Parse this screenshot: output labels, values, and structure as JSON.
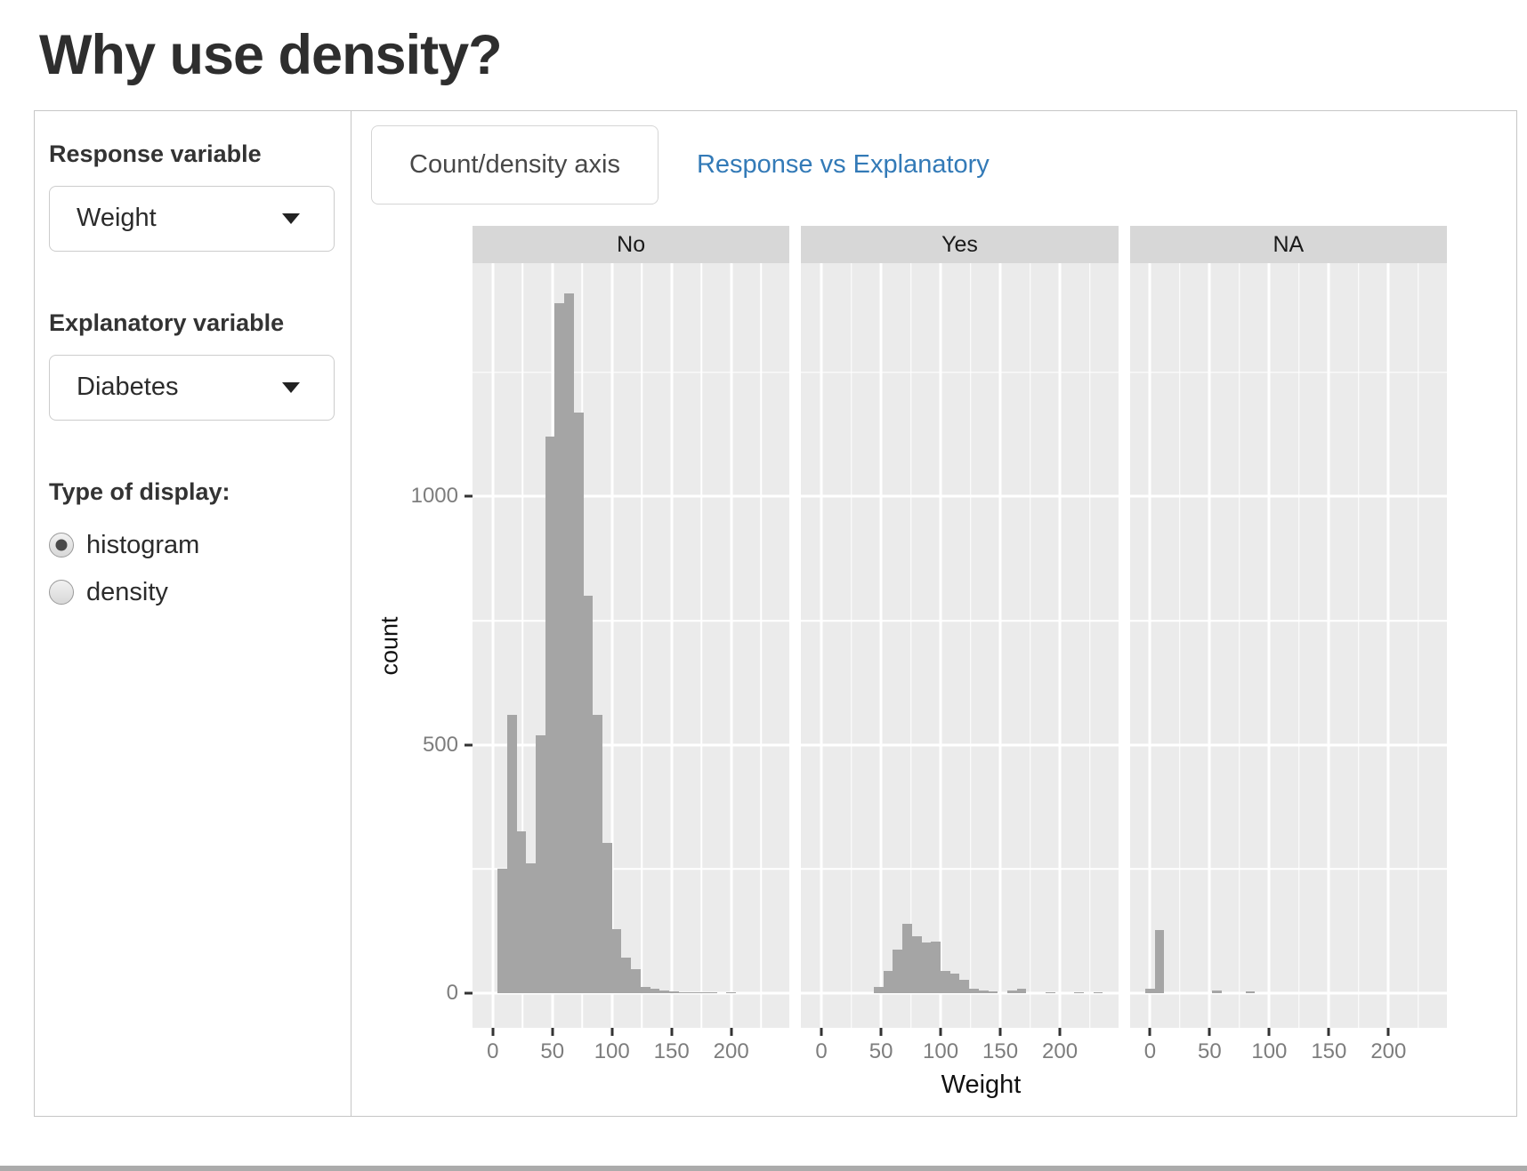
{
  "title": "Why use density?",
  "sidebar": {
    "response_label": "Response variable",
    "response_value": "Weight",
    "explanatory_label": "Explanatory variable",
    "explanatory_value": "Diabetes",
    "display_type_label": "Type of display:",
    "radios": [
      {
        "label": "histogram",
        "selected": true
      },
      {
        "label": "density",
        "selected": false
      }
    ]
  },
  "tabs": [
    {
      "label": "Count/density axis",
      "active": true
    },
    {
      "label": "Response vs Explanatory",
      "active": false
    }
  ],
  "chart_data": {
    "type": "bar",
    "subtype": "faceted-histogram",
    "title": "",
    "xlabel": "Weight",
    "ylabel": "count",
    "binwidth": 8,
    "x_domain": [
      -17,
      249
    ],
    "y_domain": [
      -70,
      1470
    ],
    "x_ticks": [
      0,
      50,
      100,
      150,
      200
    ],
    "x_minor_ticks": [
      25,
      75,
      125,
      175,
      225
    ],
    "y_ticks": [
      0,
      500,
      1000
    ],
    "y_minor_ticks": [
      250,
      750,
      1250
    ],
    "legend": "none",
    "grid": "on",
    "facets": [
      {
        "label": "No",
        "bars": [
          [
            4,
            250
          ],
          [
            12,
            560
          ],
          [
            20,
            325
          ],
          [
            28,
            262
          ],
          [
            36,
            520
          ],
          [
            44,
            1120
          ],
          [
            52,
            1390
          ],
          [
            60,
            1410
          ],
          [
            68,
            1170
          ],
          [
            76,
            800
          ],
          [
            84,
            560
          ],
          [
            92,
            302
          ],
          [
            100,
            129
          ],
          [
            108,
            71
          ],
          [
            116,
            48
          ],
          [
            124,
            12
          ],
          [
            132,
            8
          ],
          [
            140,
            5
          ],
          [
            148,
            3
          ],
          [
            156,
            2
          ],
          [
            164,
            1
          ],
          [
            172,
            1
          ],
          [
            180,
            1
          ],
          [
            196,
            1
          ]
        ]
      },
      {
        "label": "Yes",
        "bars": [
          [
            44,
            13
          ],
          [
            52,
            44
          ],
          [
            60,
            87
          ],
          [
            68,
            140
          ],
          [
            76,
            115
          ],
          [
            84,
            102
          ],
          [
            92,
            103
          ],
          [
            100,
            45
          ],
          [
            108,
            39
          ],
          [
            116,
            26
          ],
          [
            124,
            8
          ],
          [
            132,
            5
          ],
          [
            140,
            3
          ],
          [
            156,
            6
          ],
          [
            164,
            8
          ],
          [
            188,
            2
          ],
          [
            212,
            1
          ],
          [
            228,
            1
          ]
        ]
      },
      {
        "label": "NA",
        "bars": [
          [
            -4,
            9
          ],
          [
            4,
            127
          ],
          [
            52,
            6
          ],
          [
            80,
            3
          ]
        ]
      }
    ],
    "colors": {
      "bar": "#a5a5a5",
      "panel_bg": "#ebebeb",
      "strip_bg": "#d7d7d7",
      "grid": "#ffffff"
    }
  }
}
